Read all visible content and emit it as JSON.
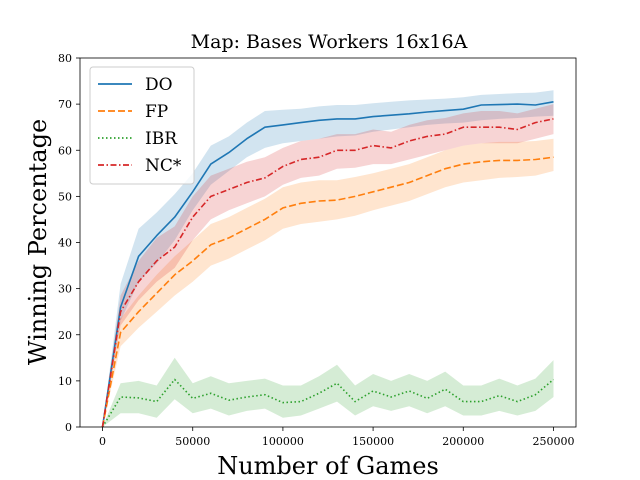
{
  "chart_data": {
    "type": "line",
    "title": "Map: Bases Workers 16x16A",
    "xlabel": "Number of Games",
    "ylabel": "Winning Percentage",
    "xlim": [
      -12500,
      262500
    ],
    "ylim": [
      0,
      80
    ],
    "xticks": [
      0,
      50000,
      100000,
      150000,
      200000,
      250000
    ],
    "xtick_labels": [
      "0",
      "50000",
      "100000",
      "150000",
      "200000",
      "250000"
    ],
    "yticks": [
      0,
      10,
      20,
      30,
      40,
      50,
      60,
      70,
      80
    ],
    "ytick_labels": [
      "0",
      "10",
      "20",
      "30",
      "40",
      "50",
      "60",
      "70",
      "80"
    ],
    "grid": false,
    "legend": "top-left",
    "x": [
      0,
      10000,
      20000,
      30000,
      40000,
      50000,
      60000,
      70000,
      80000,
      90000,
      100000,
      110000,
      120000,
      130000,
      140000,
      150000,
      160000,
      170000,
      180000,
      190000,
      200000,
      210000,
      220000,
      230000,
      240000,
      250000
    ],
    "series": [
      {
        "name": "DO",
        "color": "#1f77b4",
        "style": "solid",
        "values": [
          0,
          26,
          37,
          41.5,
          45.5,
          51,
          57,
          59.5,
          62.5,
          65,
          65.5,
          66,
          66.5,
          66.8,
          66.8,
          67.3,
          67.6,
          67.9,
          68.3,
          68.6,
          68.9,
          69.8,
          69.9,
          70,
          69.8,
          70.5
        ],
        "lower": [
          0,
          23,
          31.5,
          35.5,
          40.5,
          47,
          52.5,
          55.5,
          58.5,
          60.5,
          61.5,
          62,
          62.5,
          63,
          63.2,
          64,
          64.5,
          65,
          65.5,
          65.8,
          66,
          66.5,
          66.8,
          67,
          67.3,
          67.5
        ],
        "upper": [
          0,
          31,
          43,
          46.5,
          50.5,
          55,
          61,
          63,
          66,
          68.5,
          68.8,
          69,
          69.5,
          69.8,
          69.8,
          70.2,
          70.5,
          70.8,
          71,
          71.2,
          71.5,
          72,
          72.2,
          72.4,
          72.5,
          73
        ]
      },
      {
        "name": "FP",
        "color": "#ff7f0e",
        "style": "dashed",
        "values": [
          0,
          20.5,
          25,
          29,
          33,
          36,
          39.5,
          41,
          43,
          45,
          47.5,
          48.5,
          49,
          49.2,
          50,
          51,
          52,
          53,
          54.5,
          56,
          57,
          57.5,
          57.8,
          57.8,
          58,
          58.5
        ],
        "lower": [
          0,
          17.5,
          21.5,
          25,
          28.5,
          31.5,
          35,
          36.5,
          38.5,
          40.5,
          43,
          44,
          44.5,
          45,
          45.8,
          47,
          48,
          49,
          50.5,
          52,
          53,
          53.5,
          54,
          54.2,
          54.5,
          55.5
        ],
        "upper": [
          0,
          23.5,
          28.5,
          33,
          37,
          40.5,
          44,
          45.5,
          47.5,
          49.5,
          52,
          53,
          53.5,
          53.5,
          54.2,
          55,
          56,
          57,
          58.5,
          60,
          61,
          61.5,
          61.8,
          61.8,
          62,
          62.5
        ]
      },
      {
        "name": "IBR",
        "color": "#2ca02c",
        "style": "dotted",
        "values": [
          0,
          6.5,
          6.3,
          5.5,
          10.3,
          6.2,
          7.3,
          5.8,
          6.5,
          7,
          5.3,
          5.5,
          7.3,
          9.5,
          5.5,
          7.8,
          6.5,
          7.8,
          6.2,
          8.2,
          5.5,
          5.5,
          6.8,
          5.5,
          7,
          10.3
        ],
        "lower": [
          0,
          3,
          3,
          2,
          6,
          3,
          4,
          2.5,
          3.5,
          4,
          2,
          2.5,
          4,
          5.5,
          2.5,
          4.5,
          3.5,
          4.5,
          3,
          4.5,
          2.5,
          2.5,
          3.5,
          2.5,
          3.5,
          6.5
        ],
        "upper": [
          0,
          9.5,
          10,
          9,
          15,
          9.5,
          11,
          9.5,
          10,
          10.5,
          9,
          9,
          11,
          13.5,
          9,
          11.5,
          10,
          11.5,
          10,
          12,
          9,
          9,
          10.5,
          9,
          10.5,
          14.5
        ]
      },
      {
        "name": "NC*",
        "color": "#d62728",
        "style": "dashdot",
        "values": [
          0,
          25,
          31.5,
          36,
          39,
          45.5,
          50,
          51.5,
          53,
          54,
          56.5,
          58,
          58.5,
          60,
          60,
          61,
          60.5,
          62,
          63,
          63.5,
          65,
          65,
          65,
          64.5,
          66,
          66.8
        ],
        "lower": [
          0,
          22,
          27.5,
          31.5,
          34.5,
          40.5,
          45,
          47,
          48.5,
          50,
          52.5,
          54,
          54.5,
          56,
          56.2,
          57,
          57,
          58,
          59,
          60,
          61,
          61.5,
          61.5,
          61.5,
          62.5,
          63.5
        ],
        "upper": [
          0,
          28.5,
          36,
          41,
          43.5,
          50,
          54.5,
          56,
          57.5,
          58.5,
          60.5,
          62,
          62.5,
          63.5,
          63.5,
          64.5,
          64,
          65.5,
          66.5,
          67,
          68,
          68.5,
          68.5,
          68,
          69,
          70
        ]
      }
    ]
  }
}
